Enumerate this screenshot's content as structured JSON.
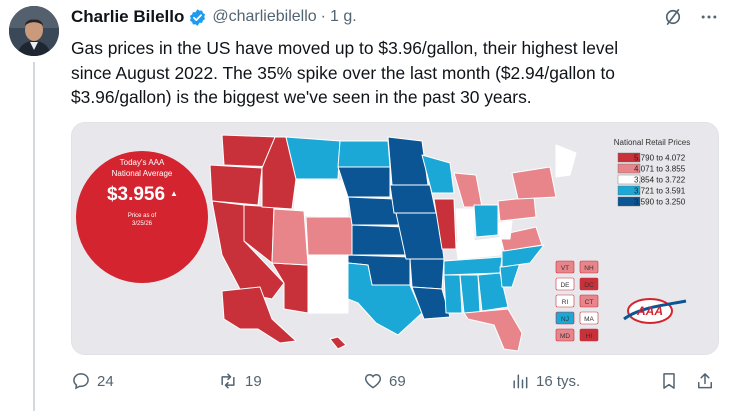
{
  "author": {
    "name": "Charlie Bilello",
    "handle": "@charliebilello",
    "separator": "·",
    "time": "1 g."
  },
  "icons": {
    "verified": "verified-badge-icon",
    "grok": "grok-slash-icon",
    "more": "more-dots-icon",
    "reply": "reply-bubble-icon",
    "repost": "repost-arrows-icon",
    "like": "heart-icon",
    "views": "views-bar-chart-icon",
    "bookmark": "bookmark-icon",
    "share": "share-upload-icon"
  },
  "tweet": {
    "lines": [
      "Gas prices in the US have moved up to $3.96/gallon, their highest level",
      "since August 2022. The 35% spike over the last month ($2.94/gallon to",
      "$3.96/gallon) is the biggest we've seen in the past 30 years."
    ]
  },
  "map": {
    "badge": {
      "line1": "Today's AAA",
      "line2": "National Average",
      "price": "$3.956",
      "arrow": "▲",
      "note1": "Price as of",
      "note2": "3/25/26"
    },
    "legend": {
      "title": "National Retail Prices",
      "items": [
        {
          "range": "5.790 to 4.072",
          "color": "#c9313a"
        },
        {
          "range": "4.071 to 3.855",
          "color": "#e7858a"
        },
        {
          "range": "3.854 to 3.722",
          "color": "#ffffff"
        },
        {
          "range": "3.721 to 3.591",
          "color": "#1ba8d6"
        },
        {
          "range": "3.590 to 3.250",
          "color": "#0b5595"
        }
      ]
    },
    "small_states": [
      {
        "abbr": "VT",
        "color": "#e7858a"
      },
      {
        "abbr": "NH",
        "color": "#e7858a"
      },
      {
        "abbr": "DE",
        "color": "#ffffff"
      },
      {
        "abbr": "DC",
        "color": "#c9313a"
      },
      {
        "abbr": "RI",
        "color": "#ffffff"
      },
      {
        "abbr": "CT",
        "color": "#e7858a"
      },
      {
        "abbr": "NJ",
        "color": "#1ba8d6"
      },
      {
        "abbr": "MA",
        "color": "#ffffff"
      },
      {
        "abbr": "MD",
        "color": "#e7858a"
      },
      {
        "abbr": "HI",
        "color": "#c9313a"
      }
    ],
    "logo": "AAA"
  },
  "actions": {
    "replies": "24",
    "reposts": "19",
    "likes": "69",
    "views": "16 tys."
  }
}
